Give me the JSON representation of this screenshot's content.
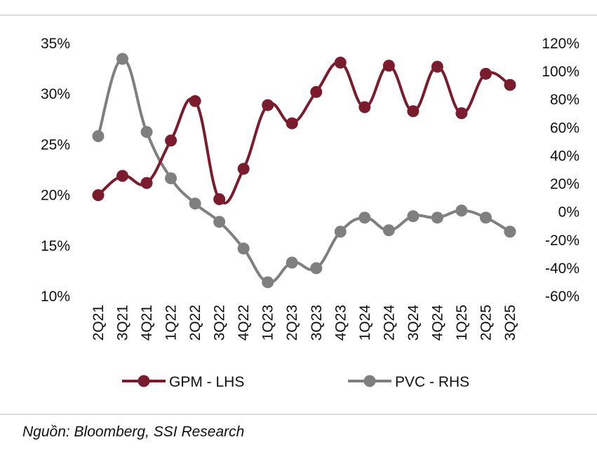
{
  "chart_data": {
    "type": "line",
    "title": "",
    "categories": [
      "2Q21",
      "3Q21",
      "4Q21",
      "1Q22",
      "2Q22",
      "3Q22",
      "4Q22",
      "1Q23",
      "2Q23",
      "3Q23",
      "4Q23",
      "1Q24",
      "2Q24",
      "3Q24",
      "4Q24",
      "1Q25",
      "2Q25",
      "3Q25"
    ],
    "series": [
      {
        "name": "GPM - LHS",
        "axis": "left",
        "color": "#7b1c2e",
        "values": [
          0.2,
          0.219,
          0.212,
          0.254,
          0.293,
          0.196,
          0.226,
          0.289,
          0.271,
          0.302,
          0.331,
          0.287,
          0.328,
          0.283,
          0.327,
          0.281,
          0.32,
          0.309
        ]
      },
      {
        "name": "PVC - RHS",
        "axis": "right",
        "color": "#7f7f7f",
        "values": [
          0.54,
          1.09,
          0.57,
          0.24,
          0.06,
          -0.07,
          -0.26,
          -0.5,
          -0.36,
          -0.4,
          -0.14,
          -0.04,
          -0.13,
          -0.03,
          -0.04,
          0.01,
          -0.04,
          -0.14
        ]
      }
    ],
    "y_left": {
      "ylim": [
        0.1,
        0.35
      ],
      "ticks": [
        0.35,
        0.3,
        0.25,
        0.2,
        0.15,
        0.1
      ],
      "tick_labels": [
        "35%",
        "30%",
        "25%",
        "20%",
        "15%",
        "10%"
      ]
    },
    "y_right": {
      "ylim": [
        -0.6,
        1.2
      ],
      "ticks": [
        1.2,
        1.0,
        0.8,
        0.6,
        0.4,
        0.2,
        0.0,
        -0.2,
        -0.4,
        -0.6
      ],
      "tick_labels": [
        "120%",
        "100%",
        "80%",
        "60%",
        "40%",
        "20%",
        "0%",
        "-20%",
        "-40%",
        "-60%"
      ]
    },
    "grid": false,
    "legend_position": "bottom"
  },
  "source_note": "Nguồn: Bloomberg, SSI Research"
}
